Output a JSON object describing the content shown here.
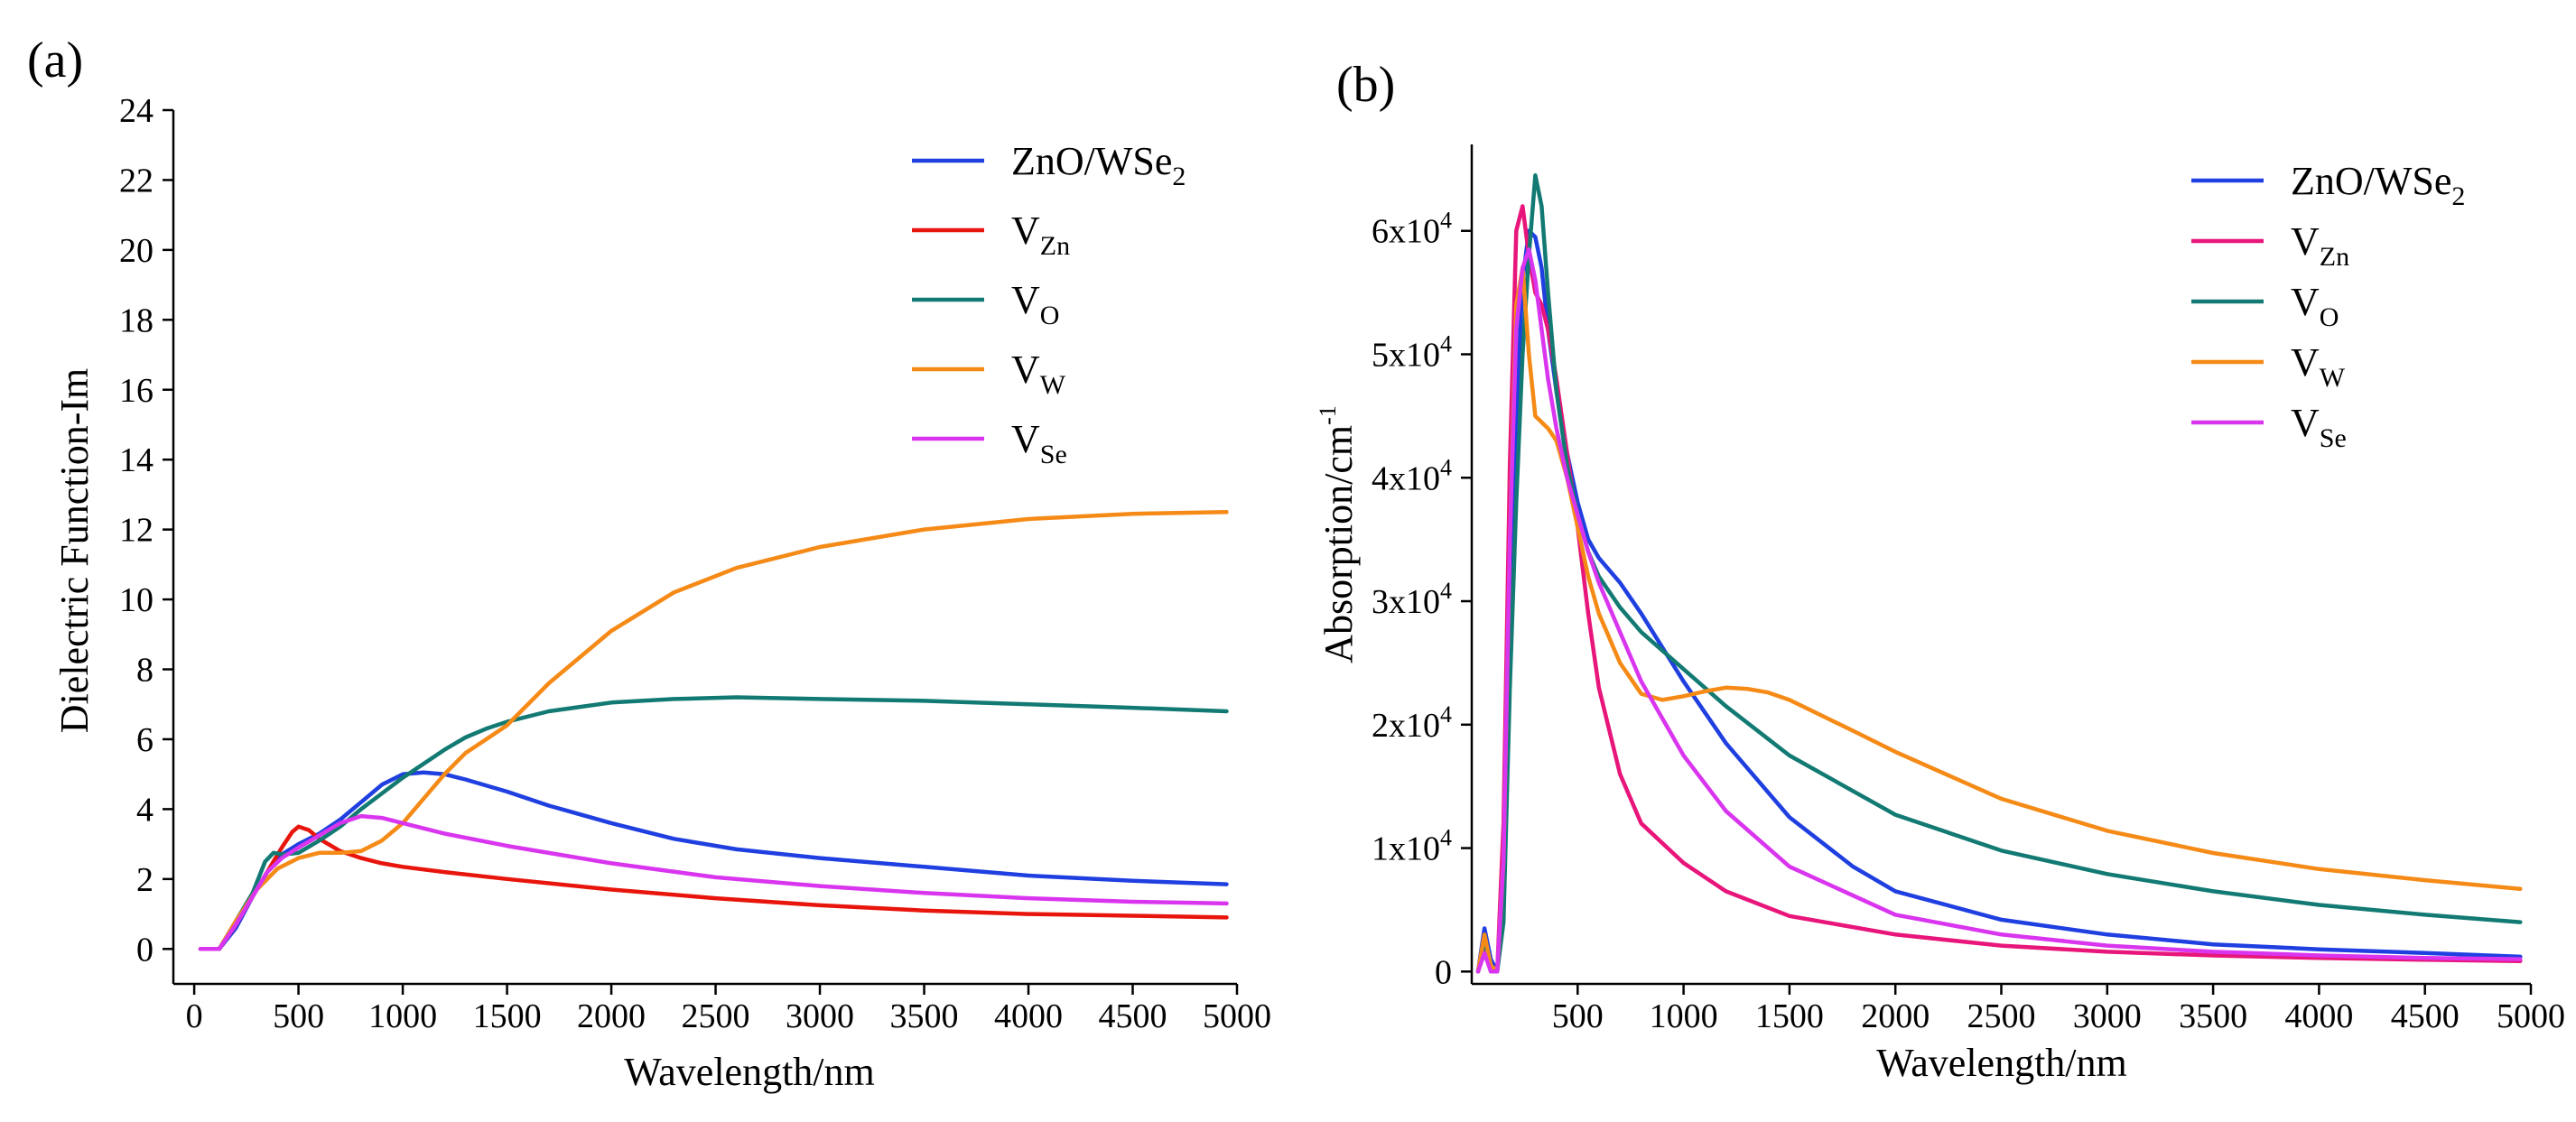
{
  "chart_data": [
    {
      "id": "a",
      "panel_label": "(a)",
      "type": "line",
      "xlabel": "Wavelength/nm",
      "ylabel": "Dielectric Function-Im",
      "xlim": [
        -100,
        5000
      ],
      "ylim": [
        -1,
        24
      ],
      "xticks": [
        0,
        500,
        1000,
        1500,
        2000,
        2500,
        3000,
        3500,
        4000,
        4500,
        5000
      ],
      "xtick_labels": [
        "0",
        "500",
        "1000",
        "1500",
        "2000",
        "2500",
        "3000",
        "3500",
        "4000",
        "4500",
        "5000"
      ],
      "yticks": [
        0,
        2,
        4,
        6,
        8,
        10,
        12,
        14,
        16,
        18,
        20,
        22,
        24
      ],
      "ytick_labels": [
        "0",
        "2",
        "4",
        "6",
        "8",
        "10",
        "12",
        "14",
        "16",
        "18",
        "20",
        "22",
        "24"
      ],
      "legend_position": "top-right",
      "series": [
        {
          "name": "ZnO/WSe",
          "sub": "2",
          "color": "#1f3fe0",
          "x": [
            30,
            120,
            200,
            280,
            350,
            420,
            500,
            600,
            700,
            800,
            900,
            1000,
            1100,
            1200,
            1300,
            1500,
            1700,
            2000,
            2300,
            2600,
            3000,
            3500,
            4000,
            4500,
            4950
          ],
          "y": [
            0,
            0,
            0.6,
            1.5,
            2.2,
            2.7,
            3.0,
            3.3,
            3.7,
            4.2,
            4.7,
            5.0,
            5.05,
            5.0,
            4.85,
            4.5,
            4.1,
            3.6,
            3.15,
            2.85,
            2.6,
            2.35,
            2.1,
            1.95,
            1.85
          ]
        },
        {
          "name": "V",
          "sub": "Zn",
          "color": "#e8150c",
          "x": [
            30,
            120,
            200,
            280,
            350,
            420,
            470,
            500,
            550,
            600,
            700,
            800,
            900,
            1000,
            1200,
            1500,
            2000,
            2500,
            3000,
            3500,
            4000,
            4500,
            4950
          ],
          "y": [
            0,
            0,
            0.7,
            1.5,
            2.2,
            2.9,
            3.35,
            3.5,
            3.4,
            3.15,
            2.8,
            2.6,
            2.45,
            2.35,
            2.2,
            2.0,
            1.7,
            1.45,
            1.25,
            1.1,
            1.0,
            0.95,
            0.9
          ]
        },
        {
          "name": "V",
          "sub": "O",
          "color": "#127a73",
          "x": [
            30,
            120,
            200,
            280,
            340,
            380,
            430,
            500,
            600,
            700,
            800,
            900,
            1000,
            1100,
            1200,
            1300,
            1400,
            1500,
            1700,
            2000,
            2300,
            2600,
            3000,
            3500,
            4000,
            4500,
            4950
          ],
          "y": [
            0,
            0,
            0.8,
            1.6,
            2.5,
            2.75,
            2.7,
            2.75,
            3.1,
            3.5,
            4.0,
            4.45,
            4.9,
            5.3,
            5.7,
            6.05,
            6.3,
            6.5,
            6.8,
            7.05,
            7.15,
            7.2,
            7.15,
            7.1,
            7.0,
            6.9,
            6.8
          ]
        },
        {
          "name": "V",
          "sub": "W",
          "color": "#f58a17",
          "x": [
            30,
            120,
            200,
            300,
            400,
            500,
            600,
            700,
            800,
            900,
            1000,
            1100,
            1200,
            1300,
            1400,
            1500,
            1700,
            2000,
            2300,
            2600,
            3000,
            3500,
            4000,
            4500,
            4950
          ],
          "y": [
            0,
            0,
            0.8,
            1.7,
            2.3,
            2.6,
            2.75,
            2.75,
            2.8,
            3.1,
            3.6,
            4.3,
            5.0,
            5.6,
            6.0,
            6.4,
            7.6,
            9.1,
            10.2,
            10.9,
            11.5,
            12.0,
            12.3,
            12.45,
            12.5
          ]
        },
        {
          "name": "V",
          "sub": "Se",
          "color": "#d935ef",
          "x": [
            30,
            120,
            200,
            280,
            350,
            420,
            500,
            600,
            700,
            800,
            900,
            1000,
            1100,
            1200,
            1500,
            2000,
            2500,
            3000,
            3500,
            4000,
            4500,
            4950
          ],
          "y": [
            0,
            0,
            0.7,
            1.5,
            2.2,
            2.6,
            2.9,
            3.25,
            3.6,
            3.8,
            3.75,
            3.6,
            3.45,
            3.3,
            2.95,
            2.45,
            2.05,
            1.8,
            1.6,
            1.45,
            1.35,
            1.3
          ]
        }
      ]
    },
    {
      "id": "b",
      "panel_label": "(b)",
      "type": "line",
      "xlabel": "Wavelength/nm",
      "ylabel": "Absorption/cm",
      "ylabel_sup": "-1",
      "xlim": [
        0,
        5000
      ],
      "ylim": [
        -1000,
        67000
      ],
      "xticks": [
        500,
        1000,
        1500,
        2000,
        2500,
        3000,
        3500,
        4000,
        4500,
        5000
      ],
      "xtick_labels": [
        "500",
        "1000",
        "1500",
        "2000",
        "2500",
        "3000",
        "3500",
        "4000",
        "4500",
        "5000"
      ],
      "yticks": [
        0,
        10000,
        20000,
        30000,
        40000,
        50000,
        60000
      ],
      "ytick_labels": [
        {
          "base": "0",
          "exp": ""
        },
        {
          "base": "1x10",
          "exp": "4"
        },
        {
          "base": "2x10",
          "exp": "4"
        },
        {
          "base": "3x10",
          "exp": "4"
        },
        {
          "base": "4x10",
          "exp": "4"
        },
        {
          "base": "5x10",
          "exp": "4"
        },
        {
          "base": "6x10",
          "exp": "4"
        }
      ],
      "legend_position": "top-right",
      "series": [
        {
          "name": "ZnO/WSe",
          "sub": "2",
          "color": "#1f3fe0",
          "x": [
            30,
            60,
            90,
            120,
            150,
            180,
            210,
            240,
            270,
            300,
            330,
            360,
            400,
            450,
            500,
            550,
            600,
            700,
            800,
            1000,
            1200,
            1500,
            1800,
            2000,
            2500,
            3000,
            3500,
            4000,
            4500,
            4950
          ],
          "y": [
            0,
            3500,
            1000,
            0,
            5000,
            28000,
            45000,
            56000,
            60000,
            59500,
            57000,
            52000,
            47000,
            42000,
            38000,
            35000,
            33500,
            31500,
            29000,
            23500,
            18500,
            12500,
            8500,
            6500,
            4200,
            3000,
            2200,
            1800,
            1500,
            1200
          ]
        },
        {
          "name": "V",
          "sub": "Zn",
          "color": "#e8157a",
          "x": [
            30,
            60,
            90,
            120,
            150,
            180,
            210,
            240,
            270,
            300,
            330,
            360,
            400,
            450,
            500,
            550,
            600,
            700,
            800,
            1000,
            1200,
            1500,
            2000,
            2500,
            3000,
            3500,
            4000,
            4500,
            4950
          ],
          "y": [
            0,
            2000,
            500,
            0,
            12000,
            41000,
            60000,
            62000,
            58000,
            55000,
            54000,
            52000,
            48000,
            42000,
            36000,
            29000,
            23000,
            16000,
            12000,
            8800,
            6500,
            4500,
            3000,
            2100,
            1600,
            1300,
            1100,
            950,
            850
          ]
        },
        {
          "name": "V",
          "sub": "O",
          "color": "#127a73",
          "x": [
            30,
            60,
            90,
            120,
            150,
            180,
            210,
            240,
            270,
            300,
            330,
            360,
            400,
            450,
            500,
            550,
            600,
            700,
            800,
            1000,
            1200,
            1500,
            2000,
            2500,
            3000,
            3500,
            4000,
            4500,
            4950
          ],
          "y": [
            0,
            2500,
            500,
            0,
            4000,
            23000,
            38000,
            50000,
            58000,
            64500,
            62000,
            55000,
            47000,
            41000,
            37000,
            34000,
            32000,
            29500,
            27500,
            24500,
            21500,
            17500,
            12700,
            9800,
            7900,
            6500,
            5400,
            4600,
            4000
          ]
        },
        {
          "name": "V",
          "sub": "W",
          "color": "#f58a17",
          "x": [
            30,
            60,
            90,
            120,
            150,
            180,
            210,
            240,
            270,
            300,
            330,
            360,
            400,
            450,
            500,
            550,
            600,
            700,
            800,
            900,
            1000,
            1100,
            1200,
            1300,
            1400,
            1500,
            1800,
            2000,
            2500,
            3000,
            3500,
            4000,
            4500,
            4950
          ],
          "y": [
            0,
            3000,
            500,
            0,
            9000,
            35000,
            54000,
            57000,
            50000,
            45000,
            44500,
            44000,
            43000,
            40000,
            36000,
            32000,
            29000,
            25000,
            22500,
            22000,
            22300,
            22700,
            23000,
            22900,
            22600,
            22000,
            19500,
            17800,
            14000,
            11400,
            9600,
            8300,
            7400,
            6700
          ]
        },
        {
          "name": "V",
          "sub": "Se",
          "color": "#d935ef",
          "x": [
            30,
            60,
            90,
            120,
            150,
            180,
            210,
            240,
            270,
            300,
            330,
            360,
            400,
            450,
            500,
            550,
            600,
            700,
            800,
            1000,
            1200,
            1500,
            2000,
            2500,
            3000,
            3500,
            4000,
            4500,
            4950
          ],
          "y": [
            0,
            1500,
            0,
            0,
            9000,
            35000,
            52000,
            57000,
            58500,
            56000,
            52000,
            48000,
            44000,
            40000,
            37000,
            34000,
            31500,
            27500,
            23500,
            17500,
            13000,
            8500,
            4600,
            3000,
            2100,
            1600,
            1300,
            1100,
            1000
          ]
        }
      ]
    }
  ]
}
